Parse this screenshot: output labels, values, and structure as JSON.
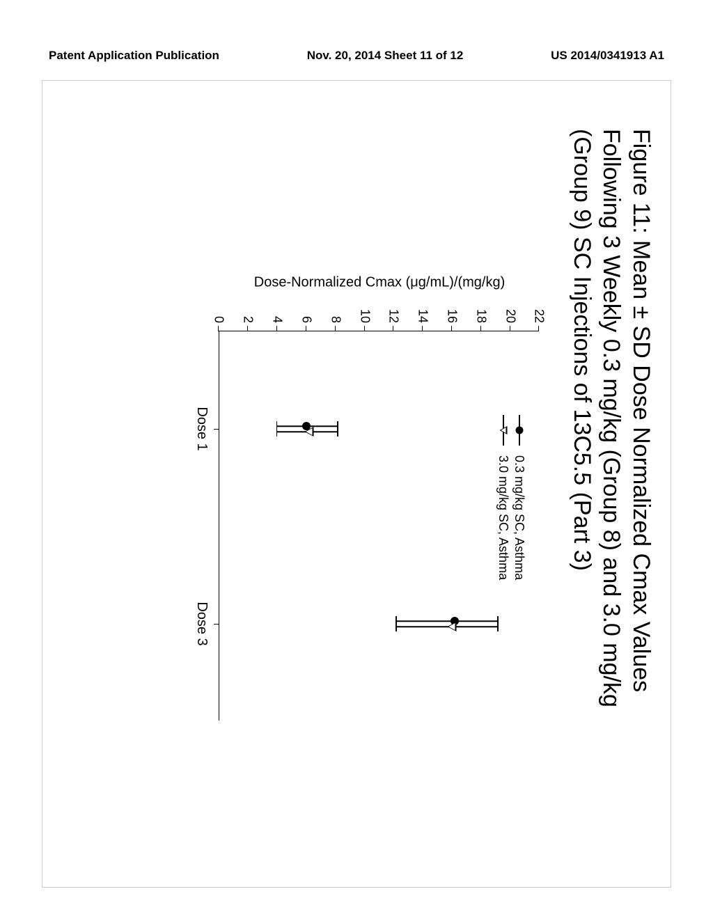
{
  "header": {
    "left": "Patent Application Publication",
    "center": "Nov. 20, 2014  Sheet 11 of 12",
    "right": "US 2014/0341913 A1"
  },
  "figure": {
    "title_line1": "Figure 11: Mean ± SD Dose Normalized Cmax Values",
    "title_line2": "Following 3 Weekly 0.3 mg/kg (Group 8) and 3.0 mg/kg",
    "title_line3": "(Group 9) SC Injections of 13C5.5 (Part 3)",
    "title_fontsize": 34
  },
  "chart": {
    "type": "scatter-errorbar",
    "ylabel": "Dose-Normalized Cmax (μg/mL)/(mg/kg)",
    "ylim": [
      0,
      22
    ],
    "ytick_step": 2,
    "yticks": [
      0,
      2,
      4,
      6,
      8,
      10,
      12,
      14,
      16,
      18,
      20,
      22
    ],
    "categories": [
      "Dose 1",
      "Dose 3"
    ],
    "x_positions_pct": [
      25,
      75
    ],
    "background_color": "#ffffff",
    "axis_color": "#000000",
    "label_fontsize": 20,
    "tick_fontsize": 18,
    "series": [
      {
        "name": "0.3 mg/kg SC, Asthma",
        "marker": "filled-circle",
        "color": "#000000",
        "points": [
          {
            "x_index": 0,
            "value": 6.0,
            "err_low": 4.0,
            "err_high": 8.2
          },
          {
            "x_index": 1,
            "value": 16.2,
            "err_low": 12.2,
            "err_high": 19.2
          }
        ]
      },
      {
        "name": "3.0 mg/kg SC, Asthma",
        "marker": "open-triangle-down",
        "color": "#000000",
        "points": [
          {
            "x_index": 0,
            "value": 6.2,
            "err_low": 4.0,
            "err_high": 8.2
          },
          {
            "x_index": 1,
            "value": 16.0,
            "err_low": 12.2,
            "err_high": 19.2
          }
        ]
      }
    ],
    "legend": {
      "items": [
        "0.3 mg/kg SC, Asthma",
        "3.0 mg/kg SC, Asthma"
      ]
    }
  }
}
